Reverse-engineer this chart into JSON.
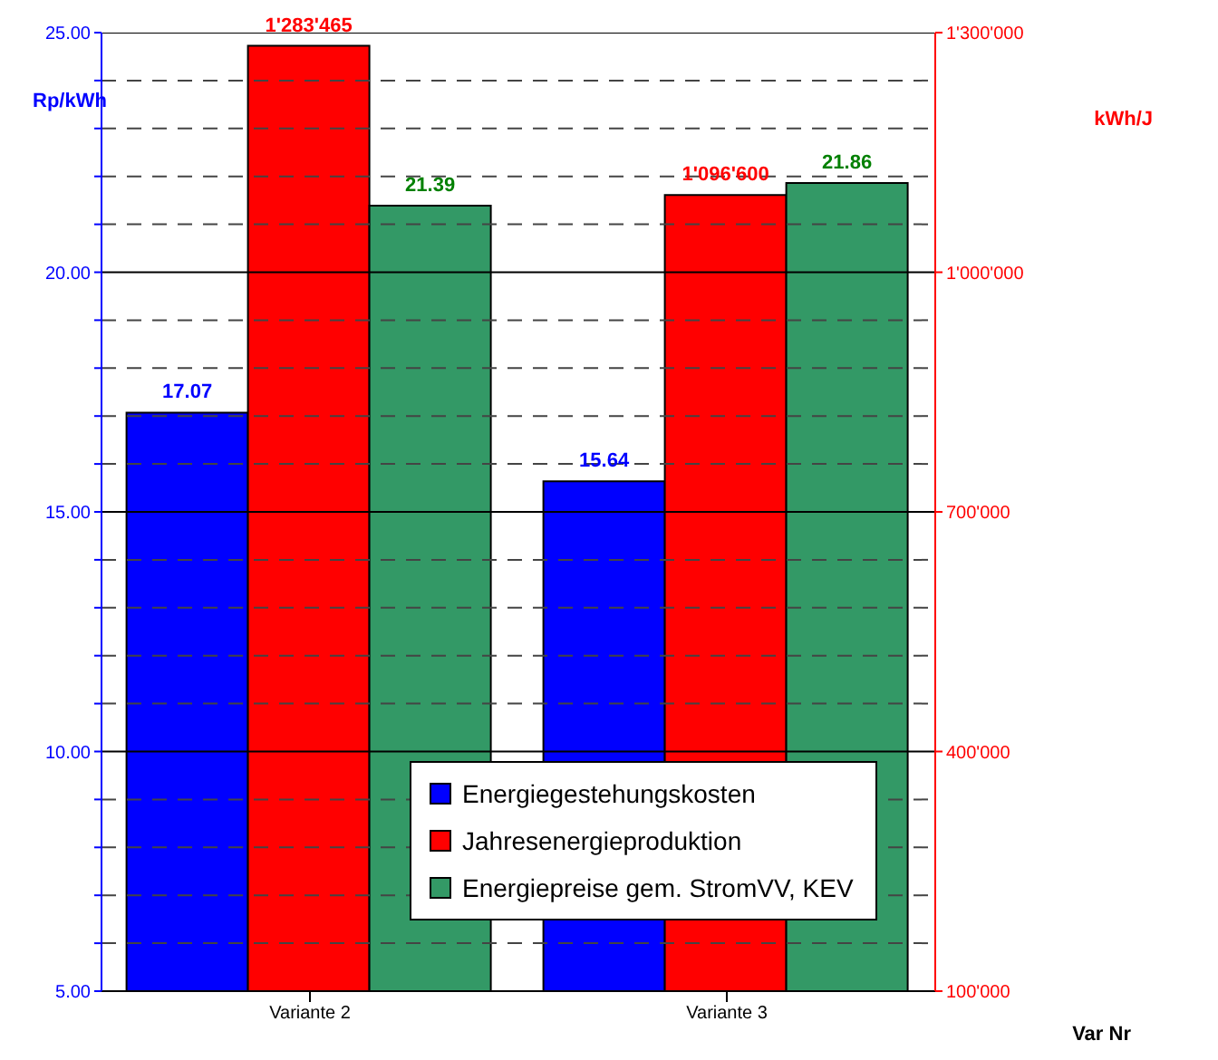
{
  "chart_data": {
    "type": "bar",
    "categories": [
      "Variante 2",
      "Variante 3"
    ],
    "xlabel": "Var Nr",
    "ylabel": "Rp/kWh",
    "y2label": "kWh/J",
    "series": [
      {
        "name": "Energiegestehungskosten",
        "color": "#0000ff",
        "values": [
          17.07,
          15.64
        ],
        "value_labels": [
          "17.07",
          "15.64"
        ]
      },
      {
        "name": "Jahresenergieproduktion",
        "color": "#ff0000",
        "axis": "y2",
        "values": [
          1283465,
          1096600
        ],
        "value_labels": [
          "1'283'465",
          "1'096'600"
        ]
      },
      {
        "name": "Energiepreise gem. StromVV, KEV",
        "color": "#339966",
        "values": [
          21.39,
          21.86
        ],
        "value_labels": [
          "21.39",
          "21.86"
        ]
      }
    ],
    "ylim": [
      5,
      25
    ],
    "yticks": [
      {
        "value": 5,
        "label": "5.00"
      },
      {
        "value": 6,
        "label": null
      },
      {
        "value": 7,
        "label": null
      },
      {
        "value": 8,
        "label": null
      },
      {
        "value": 9,
        "label": null
      },
      {
        "value": 10,
        "label": "10.00"
      },
      {
        "value": 11,
        "label": null
      },
      {
        "value": 12,
        "label": null
      },
      {
        "value": 13,
        "label": null
      },
      {
        "value": 14,
        "label": null
      },
      {
        "value": 15,
        "label": "15.00"
      },
      {
        "value": 16,
        "label": null
      },
      {
        "value": 17,
        "label": null
      },
      {
        "value": 18,
        "label": null
      },
      {
        "value": 19,
        "label": null
      },
      {
        "value": 20,
        "label": "20.00"
      },
      {
        "value": 21,
        "label": null
      },
      {
        "value": 22,
        "label": null
      },
      {
        "value": 23,
        "label": null
      },
      {
        "value": 24,
        "label": null
      },
      {
        "value": 25,
        "label": "25.00"
      }
    ],
    "y2lim": [
      100000,
      1300000
    ],
    "y2ticks": [
      {
        "value": 100000,
        "label": "100'000"
      },
      {
        "value": 400000,
        "label": "400'000"
      },
      {
        "value": 700000,
        "label": "700'000"
      },
      {
        "value": 1000000,
        "label": "1'000'000"
      },
      {
        "value": 1300000,
        "label": "1'300'000"
      }
    ],
    "grid": "y",
    "legend": "bottom"
  }
}
